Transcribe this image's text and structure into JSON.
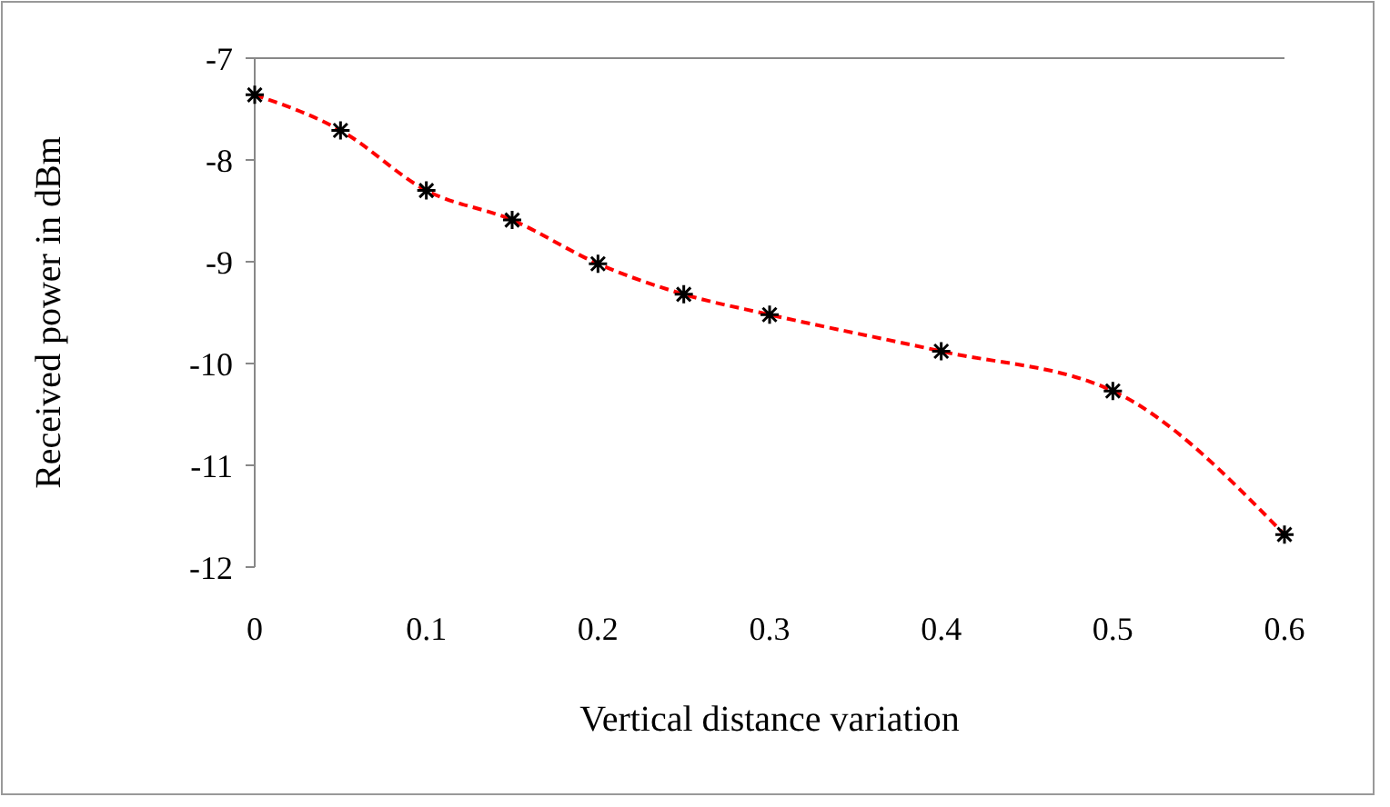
{
  "chart_data": {
    "type": "line",
    "xlabel": "Vertical  distance variation",
    "ylabel": "Received power in dBm",
    "x": [
      0,
      0.05,
      0.1,
      0.15,
      0.2,
      0.25,
      0.3,
      0.4,
      0.5,
      0.6
    ],
    "series": [
      {
        "color": "#ff0000",
        "values": [
          -7.36,
          -7.71,
          -8.3,
          -8.59,
          -9.02,
          -9.32,
          -9.52,
          -9.88,
          -10.27,
          -11.68
        ]
      }
    ],
    "xlim": [
      0,
      0.6
    ],
    "xticks": [
      0,
      0.1,
      0.2,
      0.3,
      0.4,
      0.5,
      0.6
    ],
    "ylim": [
      -12,
      -7
    ],
    "yticks": [
      -12,
      -11,
      -10,
      -9,
      -8,
      -7
    ],
    "marker": "cross",
    "line_style": "dashed",
    "grid": false
  }
}
